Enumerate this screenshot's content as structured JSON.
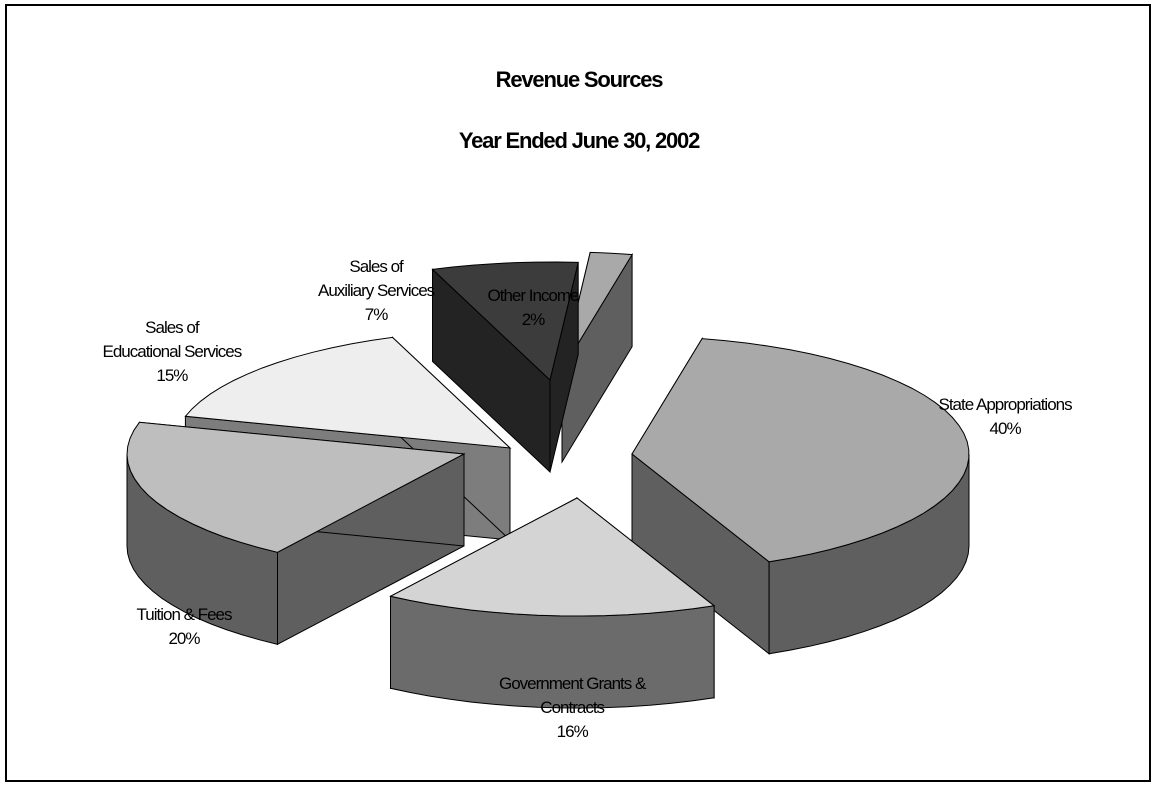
{
  "chart_data": {
    "type": "pie",
    "title": "Revenue Sources",
    "subtitle": "Year Ended June 30, 2002",
    "slices": [
      {
        "label_lines": [
          "State Appropriations"
        ],
        "value": 40,
        "value_label": "40%",
        "top_color": "#a9a9a9",
        "side_color": "#5f5f5f"
      },
      {
        "label_lines": [
          "Government Grants &",
          "Contracts"
        ],
        "value": 16,
        "value_label": "16%",
        "top_color": "#d4d4d4",
        "side_color": "#6b6b6b"
      },
      {
        "label_lines": [
          "Tuition & Fees"
        ],
        "value": 20,
        "value_label": "20%",
        "top_color": "#bebebe",
        "side_color": "#5f5f5f"
      },
      {
        "label_lines": [
          "Sales of",
          "Educational Services"
        ],
        "value": 15,
        "value_label": "15%",
        "top_color": "#eeeeee",
        "side_color": "#7d7d7d"
      },
      {
        "label_lines": [
          "Sales of",
          "Auxiliary Services"
        ],
        "value": 7,
        "value_label": "7%",
        "top_color": "#3c3c3c",
        "side_color": "#232323"
      },
      {
        "label_lines": [
          "Other Income"
        ],
        "value": 2,
        "value_label": "2%",
        "top_color": "#a9a9a9",
        "side_color": "#5f5f5f"
      }
    ],
    "legend": "none",
    "style": "3d-exploded"
  }
}
